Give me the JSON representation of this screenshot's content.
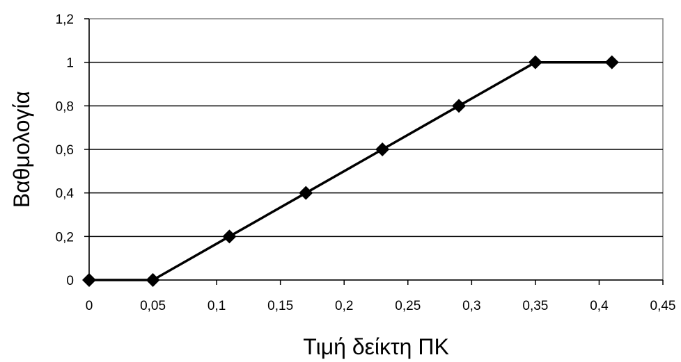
{
  "chart_data": {
    "type": "line",
    "title": "",
    "xlabel": "Τιμή δείκτη ΠΚ",
    "ylabel": "Βαθμολογία",
    "xlim": [
      0,
      0.45
    ],
    "ylim": [
      0,
      1.2
    ],
    "x_ticks": [
      "0",
      "0,05",
      "0,1",
      "0,15",
      "0,2",
      "0,25",
      "0,3",
      "0,35",
      "0,4",
      "0,45"
    ],
    "y_ticks": [
      "0",
      "0,2",
      "0,4",
      "0,6",
      "0,8",
      "1",
      "1,2"
    ],
    "grid": "horizontal",
    "legend": "none",
    "series": [
      {
        "x": [
          0,
          0.05,
          0.11,
          0.17,
          0.23,
          0.29,
          0.35,
          0.41
        ],
        "y": [
          0,
          0,
          0.2,
          0.4,
          0.6,
          0.8,
          1,
          1
        ],
        "marker": "diamond",
        "color": "#000000"
      }
    ]
  }
}
